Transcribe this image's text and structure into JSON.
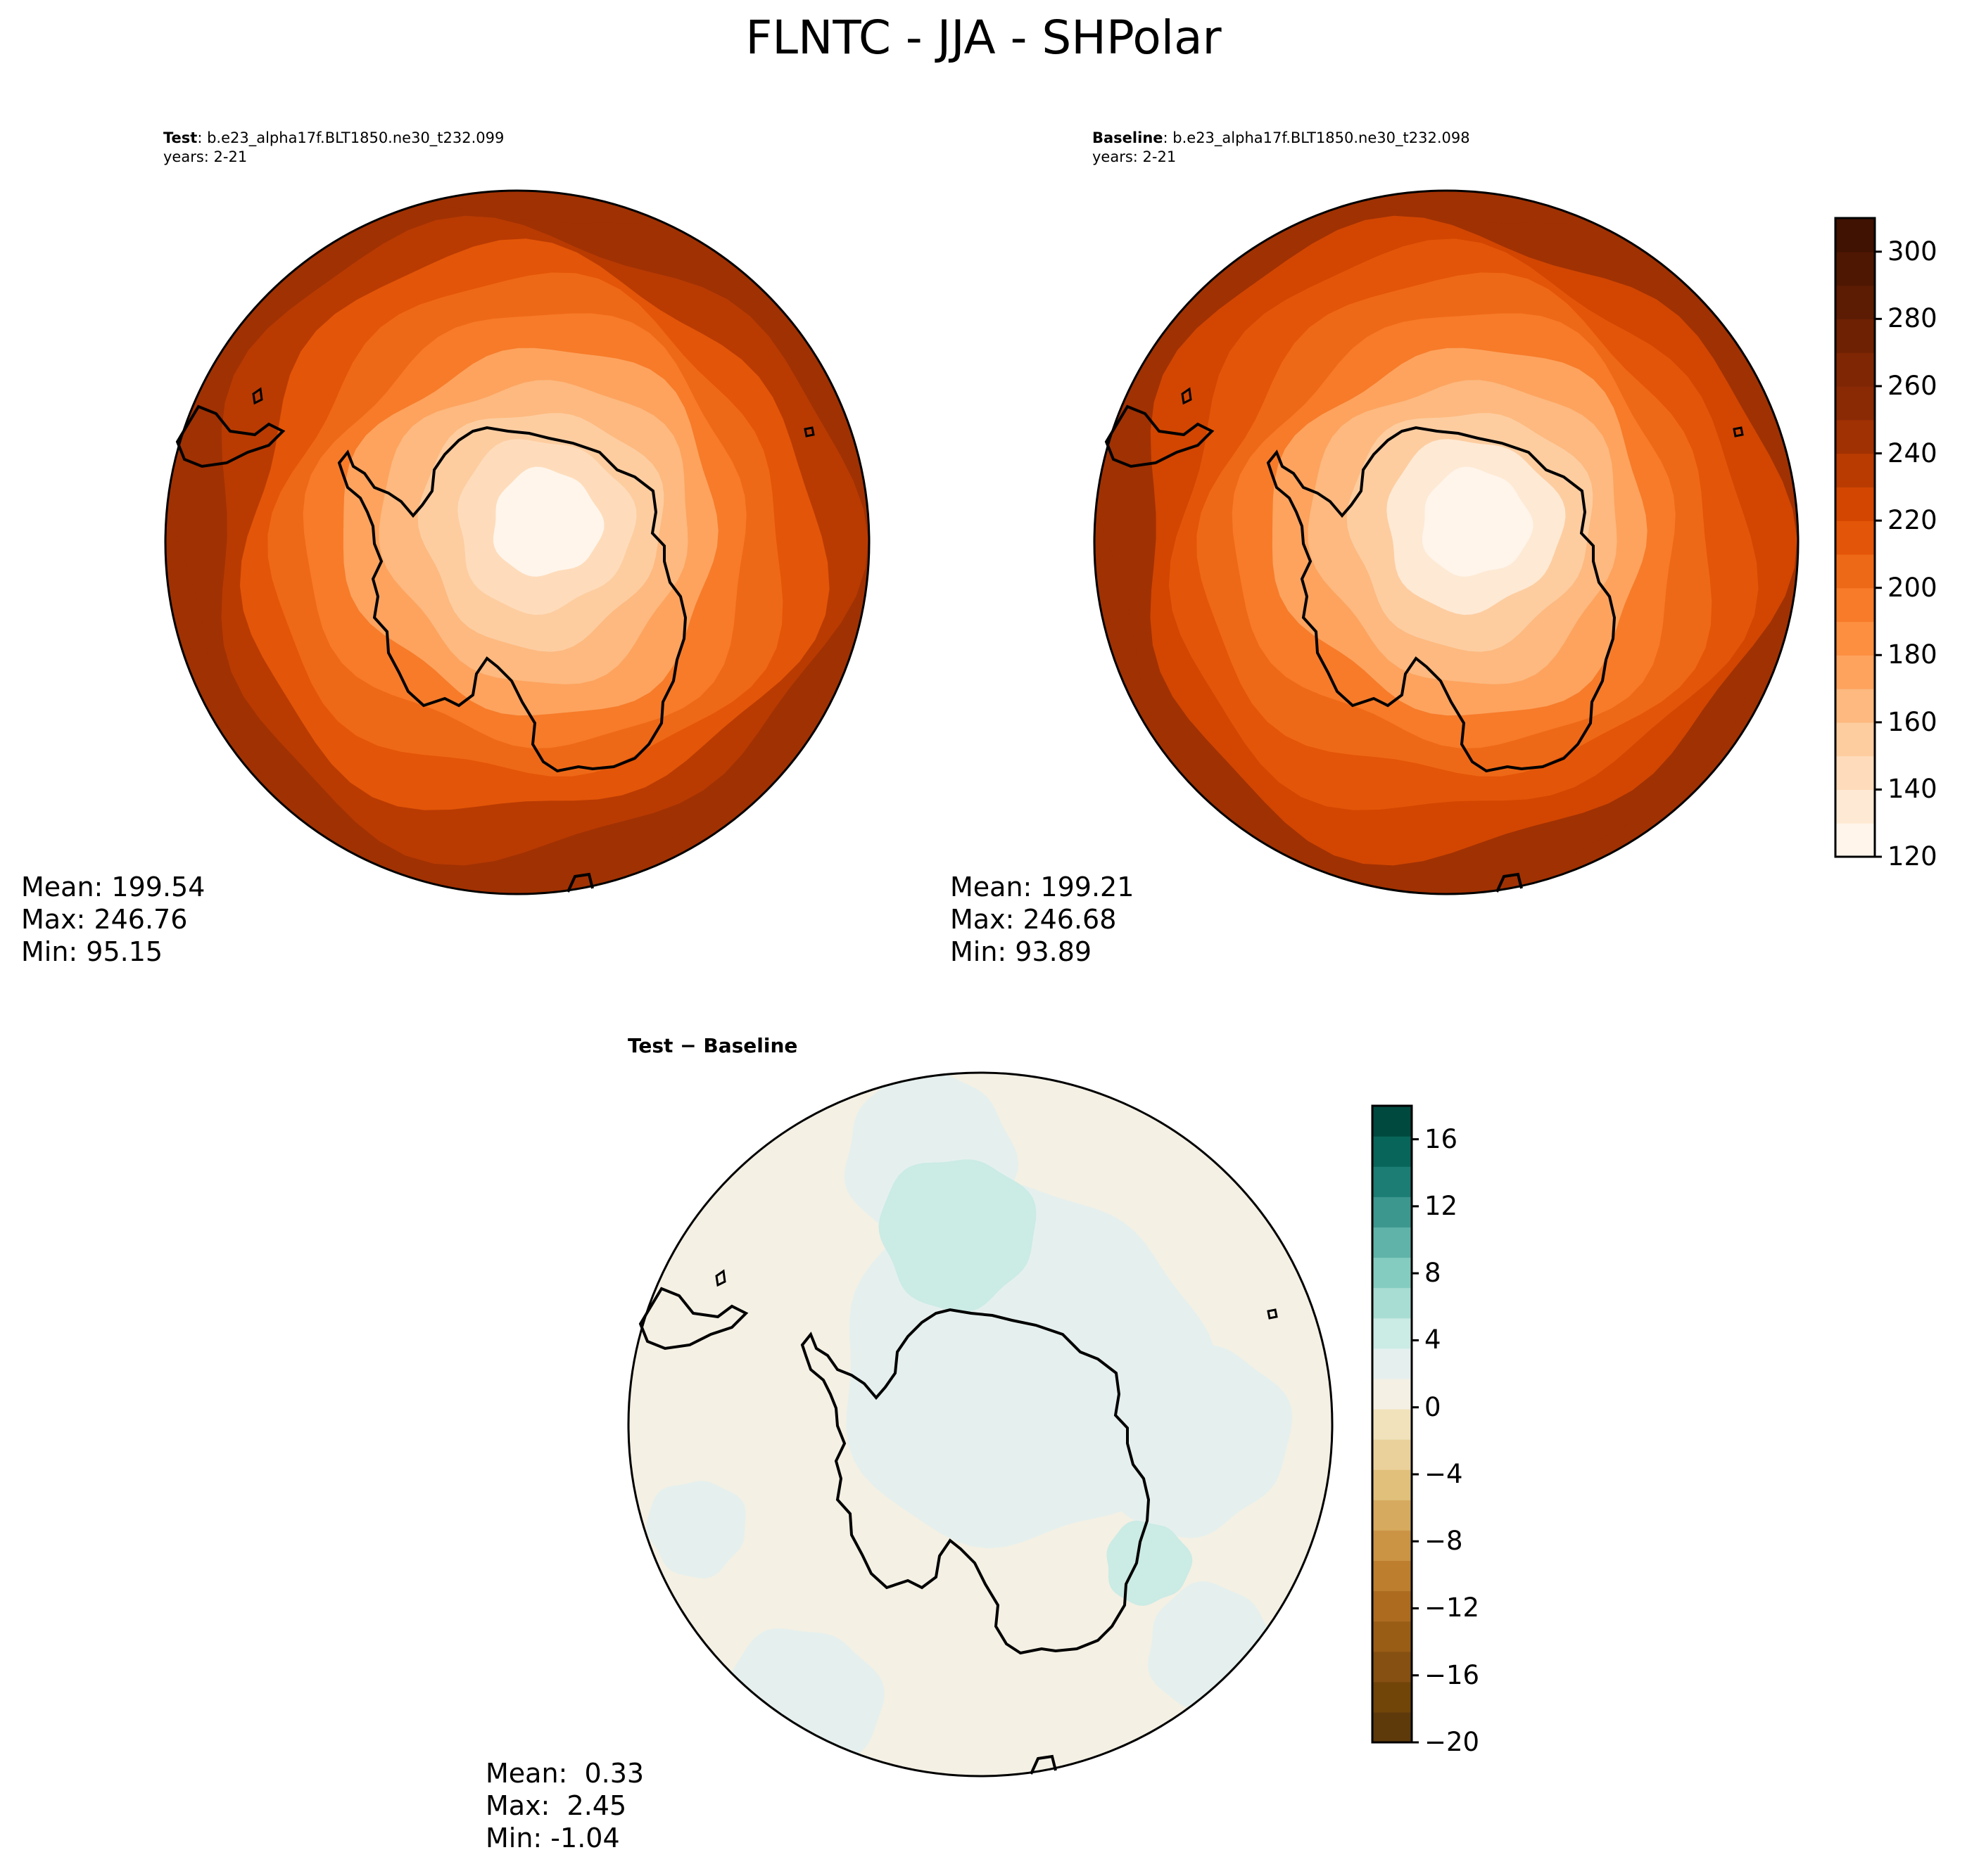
{
  "title": "FLNTC - JJA - SHPolar",
  "chart_data": [
    {
      "type": "heatmap",
      "panel": "test",
      "label_bold": "Test",
      "label_rest": ": b.e23_alpha17f.BLT1850.ne30_t232.099",
      "years": "years: 2-21",
      "projection": "south polar stereographic",
      "colormap": "Oranges",
      "color_levels": [
        120,
        130,
        140,
        150,
        160,
        170,
        180,
        190,
        200,
        210,
        220,
        230,
        240,
        250,
        260,
        270,
        280,
        290,
        300,
        310
      ],
      "field_rings": [
        {
          "value": 95
        },
        {
          "value": 128
        },
        {
          "value": 140
        },
        {
          "value": 152
        },
        {
          "value": 165
        },
        {
          "value": 178
        },
        {
          "value": 192
        },
        {
          "value": 205
        },
        {
          "value": 218
        },
        {
          "value": 230
        },
        {
          "value": 240
        },
        {
          "value": 246
        }
      ],
      "stats": {
        "mean": "Mean: 199.54",
        "max": "Max: 246.76",
        "min": "Min: 95.15"
      }
    },
    {
      "type": "heatmap",
      "panel": "baseline",
      "label_bold": "Baseline",
      "label_rest": ": b.e23_alpha17f.BLT1850.ne30_t232.098",
      "years": "years: 2-21",
      "projection": "south polar stereographic",
      "colormap": "Oranges",
      "color_levels": [
        120,
        130,
        140,
        150,
        160,
        170,
        180,
        190,
        200,
        210,
        220,
        230,
        240,
        250,
        260,
        270,
        280,
        290,
        300,
        310
      ],
      "field_rings": [
        {
          "value": 94
        },
        {
          "value": 127
        },
        {
          "value": 139
        },
        {
          "value": 151
        },
        {
          "value": 164
        },
        {
          "value": 177
        },
        {
          "value": 191
        },
        {
          "value": 204
        },
        {
          "value": 217
        },
        {
          "value": 229
        },
        {
          "value": 240
        },
        {
          "value": 246
        }
      ],
      "stats": {
        "mean": "Mean: 199.21",
        "max": "Max: 246.68",
        "min": "Min: 93.89"
      },
      "colorbar": {
        "range": [
          120,
          310
        ],
        "ticks": [
          "120",
          "140",
          "160",
          "180",
          "200",
          "220",
          "240",
          "260",
          "280",
          "300"
        ],
        "tick_values": [
          120,
          140,
          160,
          180,
          200,
          220,
          240,
          260,
          280,
          300
        ],
        "colors": [
          "#fff5eb",
          "#fee9d4",
          "#fedcbb",
          "#fdcda0",
          "#fdb97f",
          "#fda35e",
          "#fd8f40",
          "#f77b29",
          "#ee6917",
          "#e35508",
          "#d24601",
          "#b93b02",
          "#a03103",
          "#8a2a04",
          "#7f2704",
          "#6e2103",
          "#5c1c03",
          "#4e1702",
          "#3f1202"
        ]
      }
    },
    {
      "type": "heatmap",
      "panel": "difference",
      "label": "Test − Baseline",
      "projection": "south polar stereographic",
      "colormap": "BrBG",
      "stats": {
        "mean": "Mean:  0.33",
        "max": "Max:  2.45",
        "min": "Min: -1.04"
      },
      "colorbar": {
        "range": [
          -20,
          18
        ],
        "ticks": [
          "−20",
          "−16",
          "−12",
          "−8",
          "−4",
          "0",
          "4",
          "8",
          "12",
          "16"
        ],
        "tick_values": [
          -20,
          -16,
          -12,
          -8,
          -4,
          0,
          4,
          8,
          12,
          16
        ],
        "colors": [
          "#5e3a0b",
          "#714508",
          "#855011",
          "#9a5d16",
          "#ad6b20",
          "#bd7e2e",
          "#cb9444",
          "#d6aa5f",
          "#e1c07c",
          "#ead19b",
          "#f1e2bb",
          "#f4f0e4",
          "#e5f0ee",
          "#cbebe5",
          "#a8ddd3",
          "#85ccc0",
          "#5fb3a8",
          "#3c978f",
          "#1c7d74",
          "#086559",
          "#00493f"
        ]
      }
    }
  ]
}
